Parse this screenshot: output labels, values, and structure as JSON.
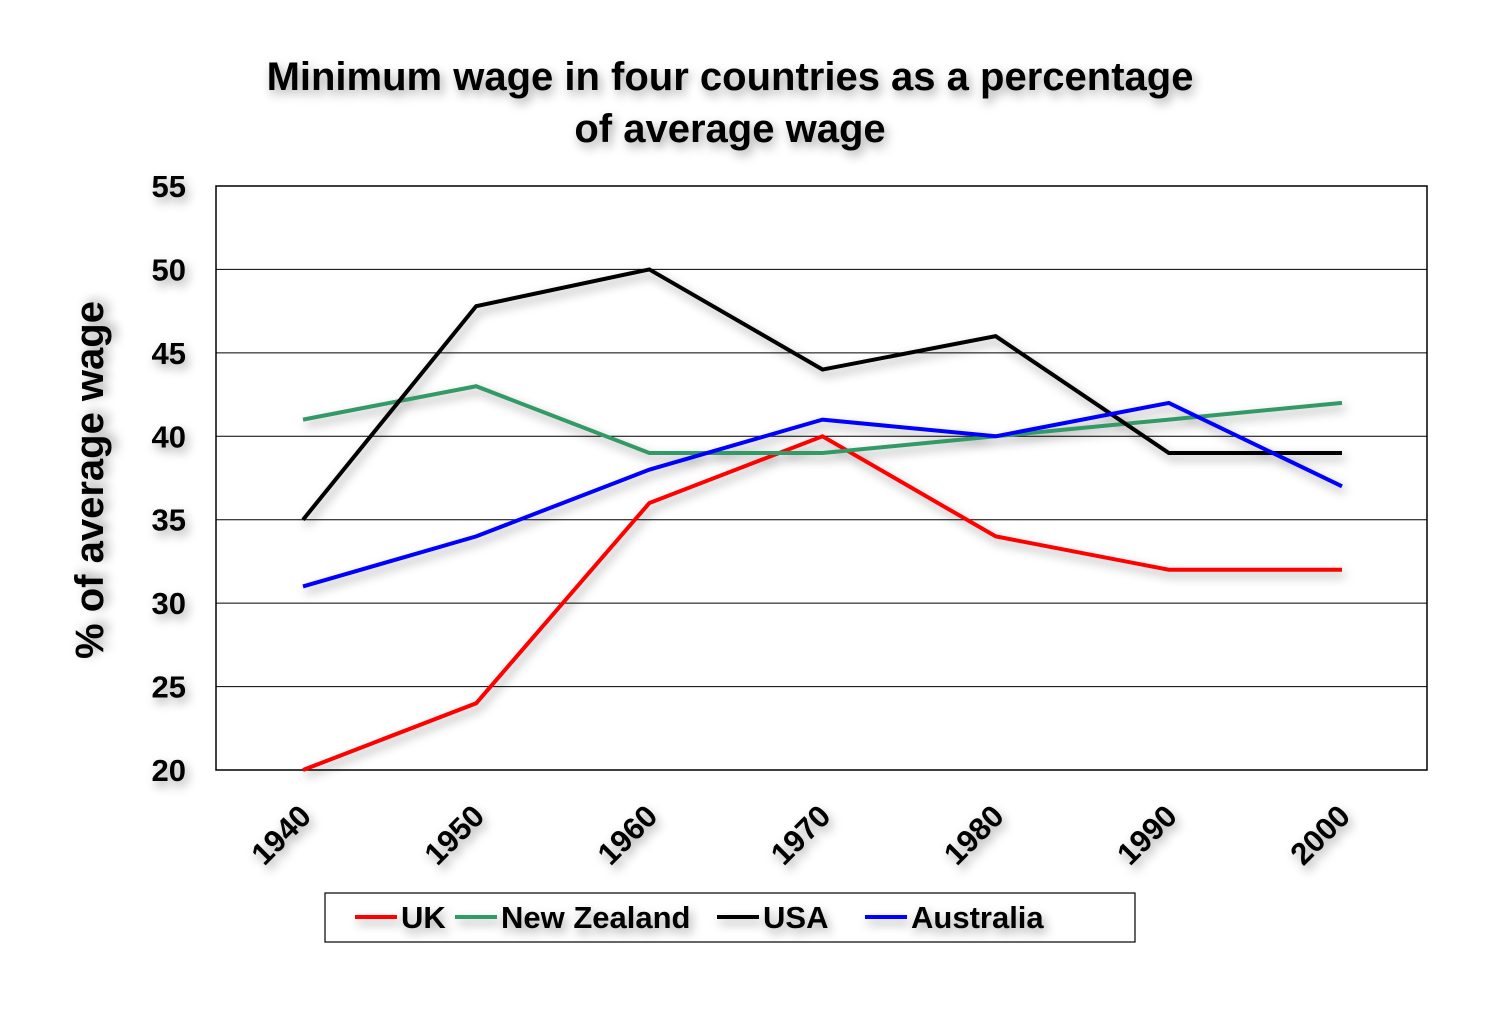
{
  "chart_data": {
    "type": "line",
    "title": [
      "Minimum wage in four countries as a percentage",
      "of average wage"
    ],
    "xlabel": "",
    "ylabel": "% of average wage",
    "categories": [
      "1940",
      "1950",
      "1960",
      "1970",
      "1980",
      "1990",
      "2000"
    ],
    "ylim": [
      20,
      55
    ],
    "yticks": [
      20,
      25,
      30,
      35,
      40,
      45,
      50,
      55
    ],
    "grid": true,
    "legend_position": "bottom",
    "series": [
      {
        "name": "UK",
        "color": "#ff0000",
        "values": [
          20,
          24,
          36,
          40,
          34,
          32,
          32
        ]
      },
      {
        "name": "New Zealand",
        "color": "#339966",
        "values": [
          41,
          43,
          39,
          39,
          40,
          41,
          42
        ]
      },
      {
        "name": "USA",
        "color": "#000000",
        "values": [
          35,
          47.8,
          50,
          44,
          46,
          39,
          39
        ]
      },
      {
        "name": "Australia",
        "color": "#0000ff",
        "values": [
          31,
          34,
          38,
          41,
          40,
          42,
          37
        ]
      }
    ]
  }
}
